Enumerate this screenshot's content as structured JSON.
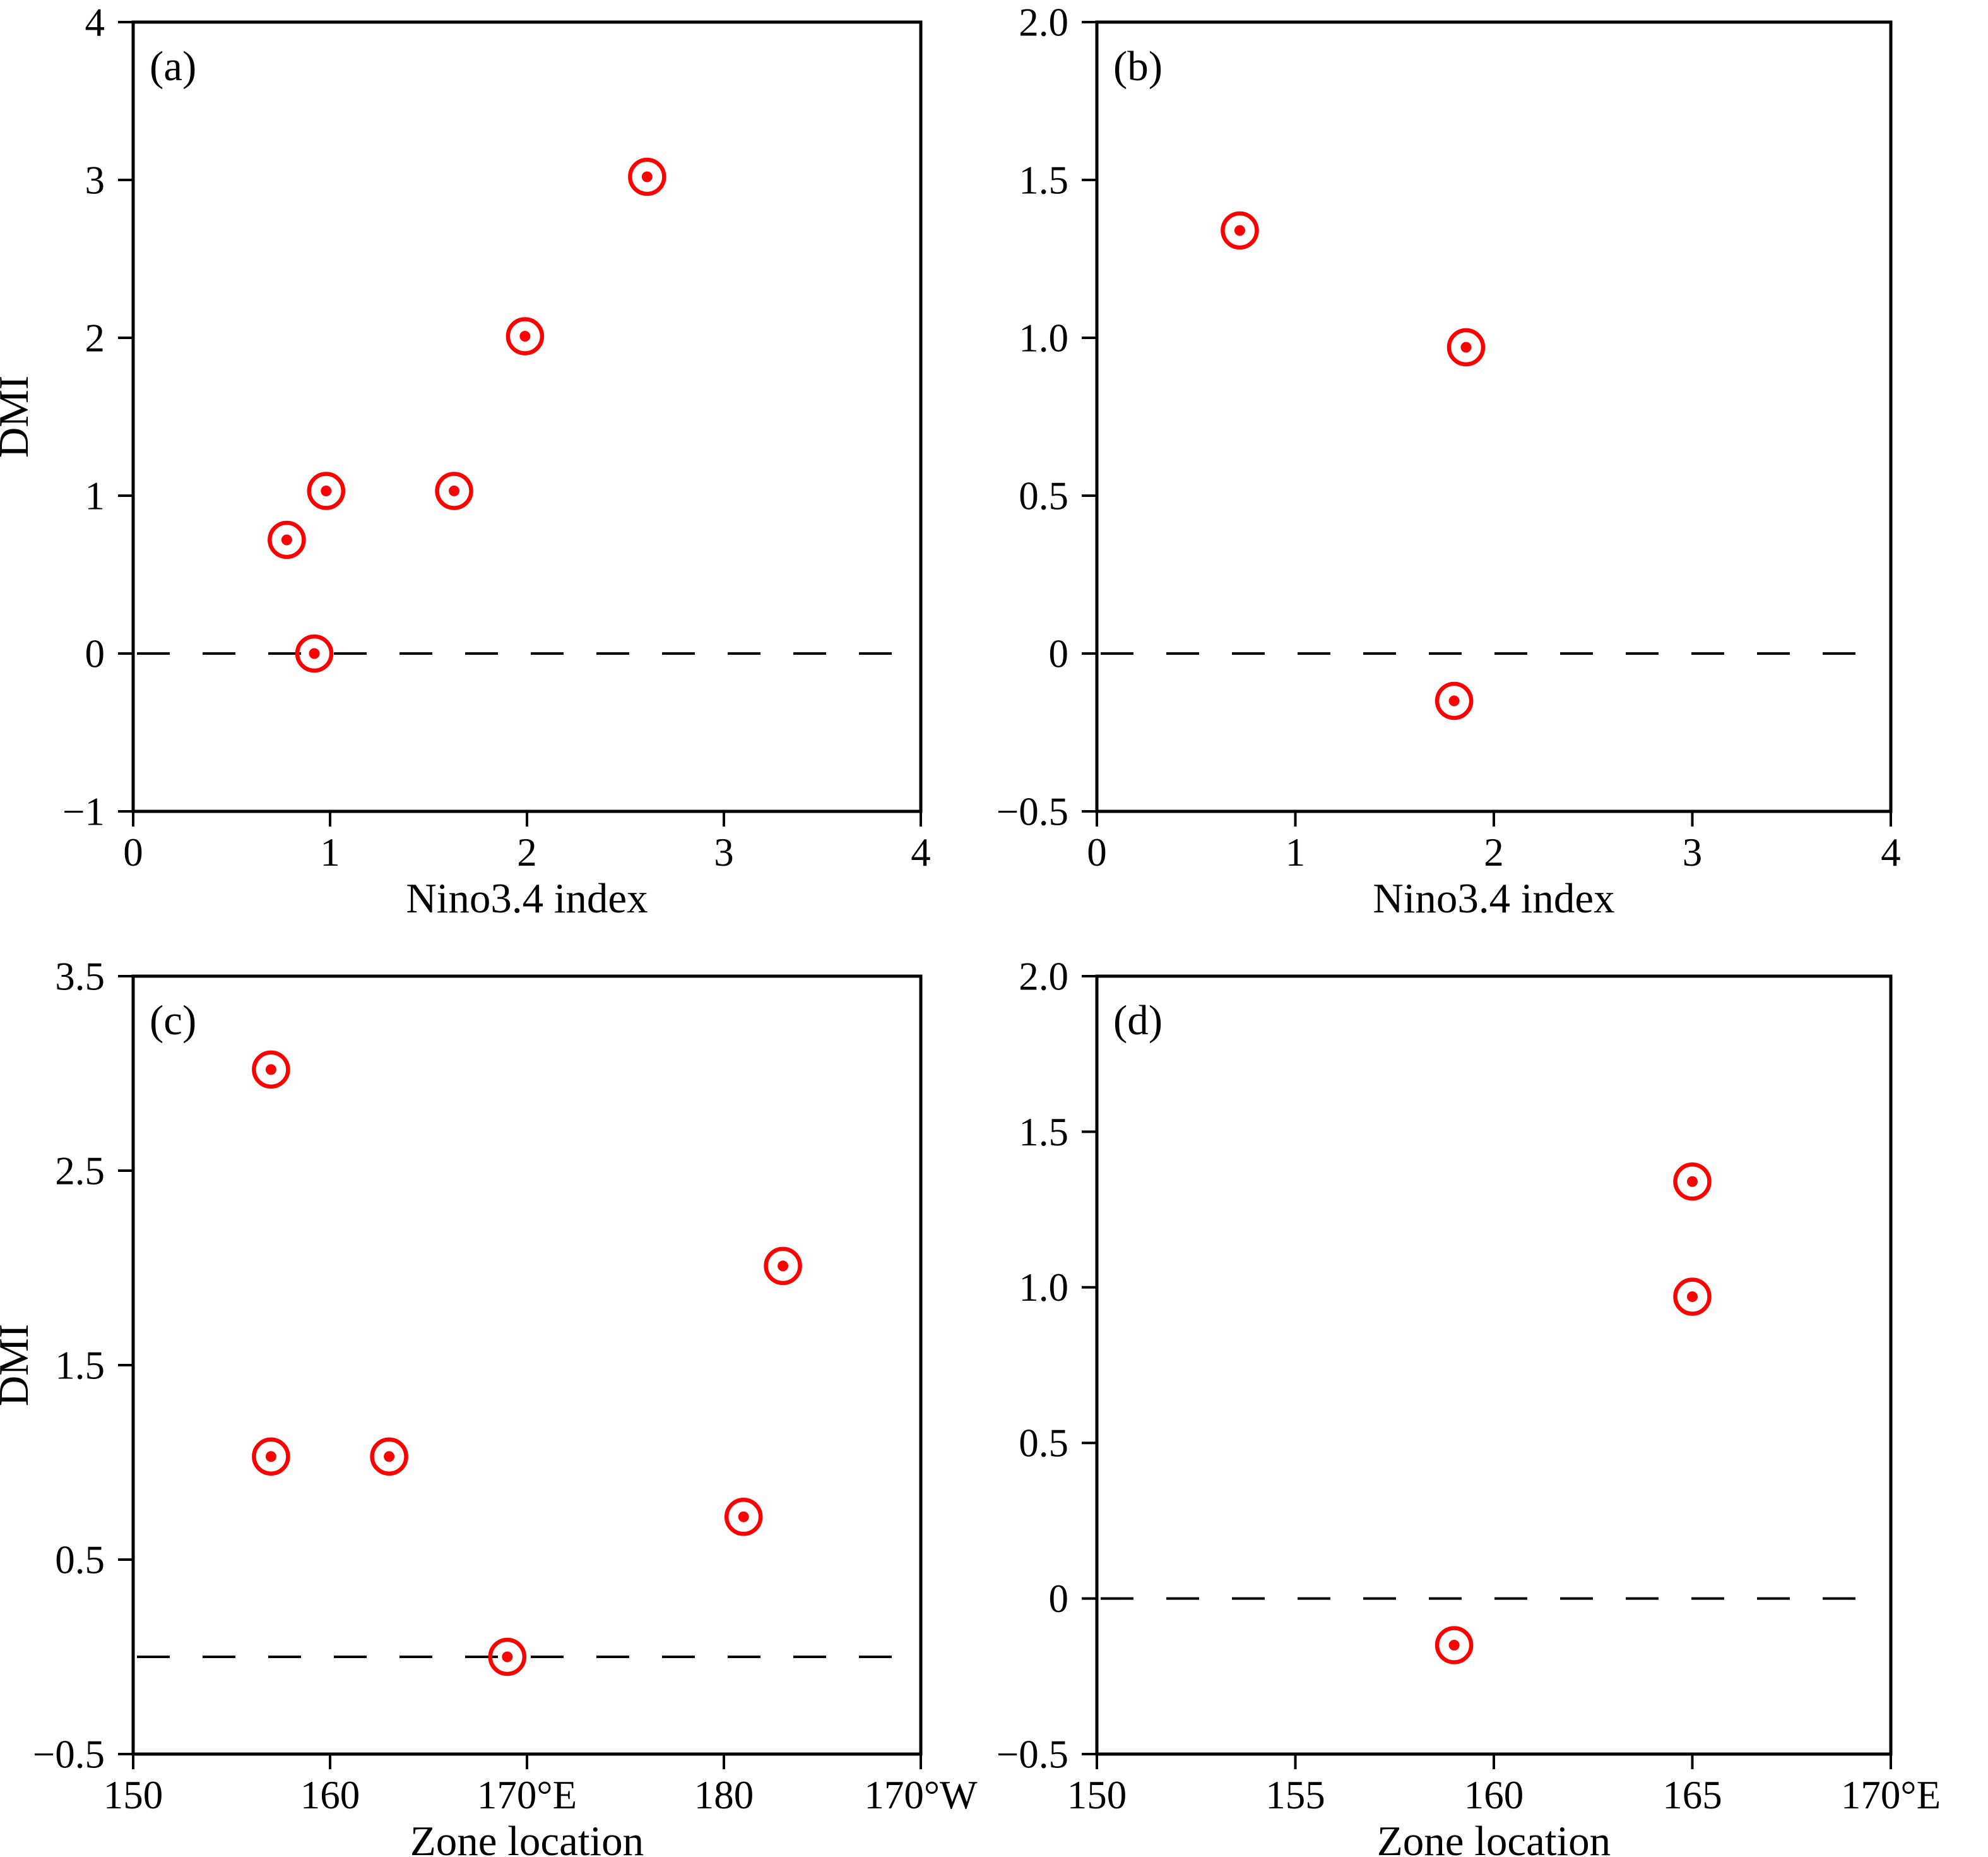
{
  "figure": {
    "background_color": "#ffffff",
    "axis_color": "#000000",
    "marker_style": {
      "type": "open-circle-with-center-dot",
      "color": "#ff0000"
    },
    "reference_line": {
      "style": "dashed",
      "color": "#000000",
      "y": 0
    }
  },
  "chart_data": [
    {
      "id": "a",
      "panel_label": "(a)",
      "type": "scatter",
      "xlabel": "Nino3.4 index",
      "ylabel": "DMI",
      "xlim": [
        0,
        4
      ],
      "ylim": [
        -1,
        4
      ],
      "grid": false,
      "zero_line": true,
      "xticks": [
        {
          "value": 0,
          "label": "0"
        },
        {
          "value": 1,
          "label": "1"
        },
        {
          "value": 2,
          "label": "2"
        },
        {
          "value": 3,
          "label": "3"
        },
        {
          "value": 4,
          "label": "4"
        }
      ],
      "yticks": [
        {
          "value": 4,
          "label": "4"
        },
        {
          "value": 3,
          "label": "3"
        },
        {
          "value": 2,
          "label": "2"
        },
        {
          "value": 1,
          "label": "1"
        },
        {
          "value": 0,
          "label": "0"
        },
        {
          "value": -1,
          "label": "−1"
        }
      ],
      "points": [
        {
          "x": 0.78,
          "y": 0.72
        },
        {
          "x": 0.92,
          "y": 0.0
        },
        {
          "x": 0.98,
          "y": 1.03
        },
        {
          "x": 1.63,
          "y": 1.03
        },
        {
          "x": 1.99,
          "y": 2.01
        },
        {
          "x": 2.61,
          "y": 3.02
        }
      ]
    },
    {
      "id": "b",
      "panel_label": "(b)",
      "type": "scatter",
      "xlabel": "Nino3.4 index",
      "ylabel": "",
      "xlim": [
        0,
        4
      ],
      "ylim": [
        -0.5,
        2.0
      ],
      "grid": false,
      "zero_line": true,
      "xticks": [
        {
          "value": 0,
          "label": "0"
        },
        {
          "value": 1,
          "label": "1"
        },
        {
          "value": 2,
          "label": "2"
        },
        {
          "value": 3,
          "label": "3"
        },
        {
          "value": 4,
          "label": "4"
        }
      ],
      "yticks": [
        {
          "value": 2.0,
          "label": "2.0"
        },
        {
          "value": 1.5,
          "label": "1.5"
        },
        {
          "value": 1.0,
          "label": "1.0"
        },
        {
          "value": 0.5,
          "label": "0.5"
        },
        {
          "value": 0,
          "label": "0"
        },
        {
          "value": -0.5,
          "label": "−0.5"
        }
      ],
      "points": [
        {
          "x": 0.72,
          "y": 1.34
        },
        {
          "x": 1.86,
          "y": 0.97
        },
        {
          "x": 1.8,
          "y": -0.15
        }
      ]
    },
    {
      "id": "c",
      "panel_label": "(c)",
      "type": "scatter",
      "xlabel": "Zone location",
      "ylabel": "DMI",
      "xlim": [
        150,
        190
      ],
      "ylim": [
        -0.5,
        3.5
      ],
      "grid": false,
      "zero_line": true,
      "xticks": [
        {
          "value": 150,
          "label": "150"
        },
        {
          "value": 160,
          "label": "160"
        },
        {
          "value": 170,
          "label": "170°E"
        },
        {
          "value": 180,
          "label": "180"
        },
        {
          "value": 190,
          "label": "170°W"
        }
      ],
      "yticks": [
        {
          "value": 3.5,
          "label": "3.5"
        },
        {
          "value": 2.5,
          "label": "2.5"
        },
        {
          "value": 1.5,
          "label": "1.5"
        },
        {
          "value": 0.5,
          "label": "0.5"
        },
        {
          "value": -0.5,
          "label": "−0.5"
        }
      ],
      "points": [
        {
          "x": 157,
          "y": 3.02
        },
        {
          "x": 157,
          "y": 1.03
        },
        {
          "x": 163,
          "y": 1.03
        },
        {
          "x": 169,
          "y": 0.0
        },
        {
          "x": 181,
          "y": 0.72
        },
        {
          "x": 183,
          "y": 2.01
        }
      ]
    },
    {
      "id": "d",
      "panel_label": "(d)",
      "type": "scatter",
      "xlabel": "Zone location",
      "ylabel": "",
      "xlim": [
        150,
        170
      ],
      "ylim": [
        -0.5,
        2.0
      ],
      "grid": false,
      "zero_line": true,
      "xticks": [
        {
          "value": 150,
          "label": "150"
        },
        {
          "value": 155,
          "label": "155"
        },
        {
          "value": 160,
          "label": "160"
        },
        {
          "value": 165,
          "label": "165"
        },
        {
          "value": 170,
          "label": "170°E"
        }
      ],
      "yticks": [
        {
          "value": 2.0,
          "label": "2.0"
        },
        {
          "value": 1.5,
          "label": "1.5"
        },
        {
          "value": 1.0,
          "label": "1.0"
        },
        {
          "value": 0.5,
          "label": "0.5"
        },
        {
          "value": 0,
          "label": "0"
        },
        {
          "value": -0.5,
          "label": "−0.5"
        }
      ],
      "points": [
        {
          "x": 159,
          "y": -0.15
        },
        {
          "x": 165,
          "y": 0.97
        },
        {
          "x": 165,
          "y": 1.34
        }
      ]
    }
  ]
}
